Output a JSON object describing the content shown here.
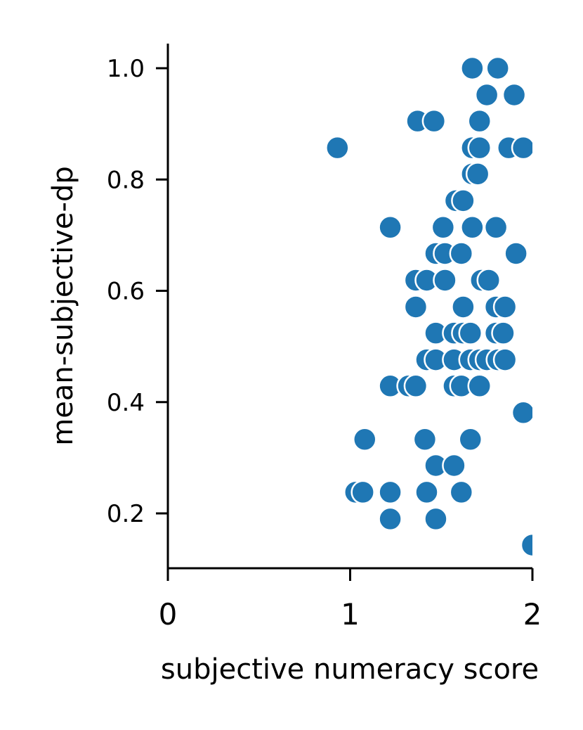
{
  "chart_data": {
    "type": "scatter",
    "title": "",
    "xlabel": "subjective numeracy score",
    "ylabel": "mean-subjective-dp",
    "xlim": [
      0,
      2
    ],
    "ylim": [
      0.1,
      1.05
    ],
    "xticks": [
      0,
      1,
      2
    ],
    "xtick_labels": [
      "0",
      "1",
      "2"
    ],
    "yticks": [
      0.2,
      0.4,
      0.6,
      0.8,
      1.0
    ],
    "ytick_labels": [
      "0.2",
      "0.4",
      "0.6",
      "0.8",
      "1.0"
    ],
    "grid": false,
    "point_color": "#1f77b4",
    "points": [
      {
        "x": 1.67,
        "y": 1.0
      },
      {
        "x": 1.81,
        "y": 1.0
      },
      {
        "x": 1.75,
        "y": 0.952
      },
      {
        "x": 1.9,
        "y": 0.952
      },
      {
        "x": 1.37,
        "y": 0.905
      },
      {
        "x": 1.46,
        "y": 0.905
      },
      {
        "x": 1.71,
        "y": 0.905
      },
      {
        "x": 0.93,
        "y": 0.857
      },
      {
        "x": 1.67,
        "y": 0.857
      },
      {
        "x": 1.71,
        "y": 0.857
      },
      {
        "x": 1.87,
        "y": 0.857
      },
      {
        "x": 1.95,
        "y": 0.857
      },
      {
        "x": 1.67,
        "y": 0.81
      },
      {
        "x": 1.7,
        "y": 0.81
      },
      {
        "x": 1.58,
        "y": 0.762
      },
      {
        "x": 1.62,
        "y": 0.762
      },
      {
        "x": 1.22,
        "y": 0.714
      },
      {
        "x": 1.51,
        "y": 0.714
      },
      {
        "x": 1.67,
        "y": 0.714
      },
      {
        "x": 1.8,
        "y": 0.714
      },
      {
        "x": 1.47,
        "y": 0.667
      },
      {
        "x": 1.52,
        "y": 0.667
      },
      {
        "x": 1.61,
        "y": 0.667
      },
      {
        "x": 1.91,
        "y": 0.667
      },
      {
        "x": 1.36,
        "y": 0.619
      },
      {
        "x": 1.42,
        "y": 0.619
      },
      {
        "x": 1.52,
        "y": 0.619
      },
      {
        "x": 1.72,
        "y": 0.619
      },
      {
        "x": 1.76,
        "y": 0.619
      },
      {
        "x": 1.36,
        "y": 0.571
      },
      {
        "x": 1.62,
        "y": 0.571
      },
      {
        "x": 1.8,
        "y": 0.571
      },
      {
        "x": 1.85,
        "y": 0.571
      },
      {
        "x": 1.47,
        "y": 0.524
      },
      {
        "x": 1.57,
        "y": 0.524
      },
      {
        "x": 1.62,
        "y": 0.524
      },
      {
        "x": 1.66,
        "y": 0.524
      },
      {
        "x": 1.8,
        "y": 0.524
      },
      {
        "x": 1.84,
        "y": 0.524
      },
      {
        "x": 1.42,
        "y": 0.476
      },
      {
        "x": 1.47,
        "y": 0.476
      },
      {
        "x": 1.57,
        "y": 0.476
      },
      {
        "x": 1.66,
        "y": 0.476
      },
      {
        "x": 1.71,
        "y": 0.476
      },
      {
        "x": 1.75,
        "y": 0.476
      },
      {
        "x": 1.81,
        "y": 0.476
      },
      {
        "x": 1.85,
        "y": 0.476
      },
      {
        "x": 1.22,
        "y": 0.429
      },
      {
        "x": 1.32,
        "y": 0.429
      },
      {
        "x": 1.36,
        "y": 0.429
      },
      {
        "x": 1.57,
        "y": 0.429
      },
      {
        "x": 1.61,
        "y": 0.429
      },
      {
        "x": 1.71,
        "y": 0.429
      },
      {
        "x": 1.95,
        "y": 0.381
      },
      {
        "x": 1.08,
        "y": 0.333
      },
      {
        "x": 1.41,
        "y": 0.333
      },
      {
        "x": 1.66,
        "y": 0.333
      },
      {
        "x": 1.47,
        "y": 0.286
      },
      {
        "x": 1.57,
        "y": 0.286
      },
      {
        "x": 1.03,
        "y": 0.238
      },
      {
        "x": 1.07,
        "y": 0.238
      },
      {
        "x": 1.22,
        "y": 0.238
      },
      {
        "x": 1.42,
        "y": 0.238
      },
      {
        "x": 1.61,
        "y": 0.238
      },
      {
        "x": 1.22,
        "y": 0.19
      },
      {
        "x": 1.47,
        "y": 0.19
      },
      {
        "x": 2.0,
        "y": 0.143
      }
    ]
  }
}
